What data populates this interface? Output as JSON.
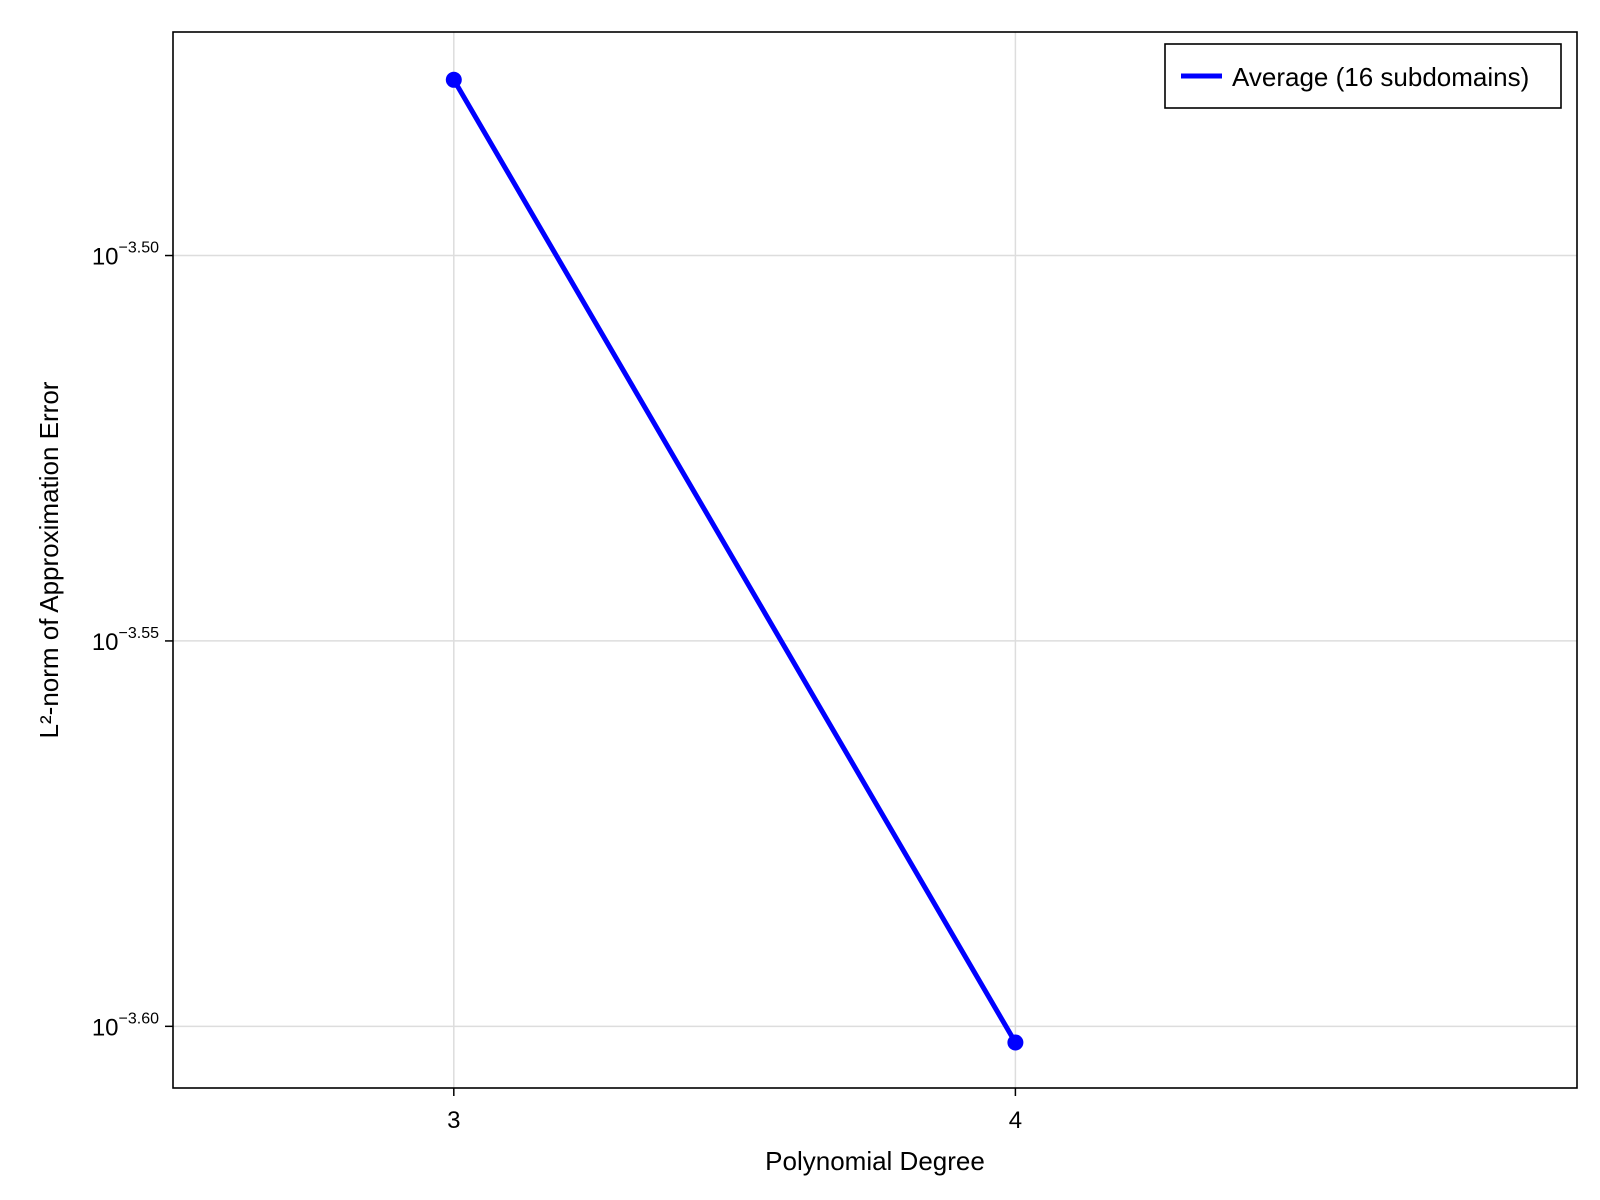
{
  "chart_data": {
    "type": "line",
    "xlabel": "Polynomial Degree",
    "ylabel": "L²-norm of Approximation Error",
    "x": [
      3,
      4
    ],
    "xticks": [
      "3",
      "4"
    ],
    "xlim": [
      2.5,
      5.0
    ],
    "y_scale": "log10",
    "ylim_log10": [
      -3.608,
      -3.471
    ],
    "yticks": [
      {
        "log10": -3.5,
        "base": "10",
        "exponent": "−3.50"
      },
      {
        "log10": -3.55,
        "base": "10",
        "exponent": "−3.55"
      },
      {
        "log10": -3.6,
        "base": "10",
        "exponent": "−3.60"
      }
    ],
    "series": [
      {
        "name": "Average (16 subdomains)",
        "color": "#0000ff",
        "log10_values": [
          -3.4772,
          -3.6021
        ],
        "markers": true
      }
    ],
    "grid": true,
    "legend_position": "top-right"
  }
}
